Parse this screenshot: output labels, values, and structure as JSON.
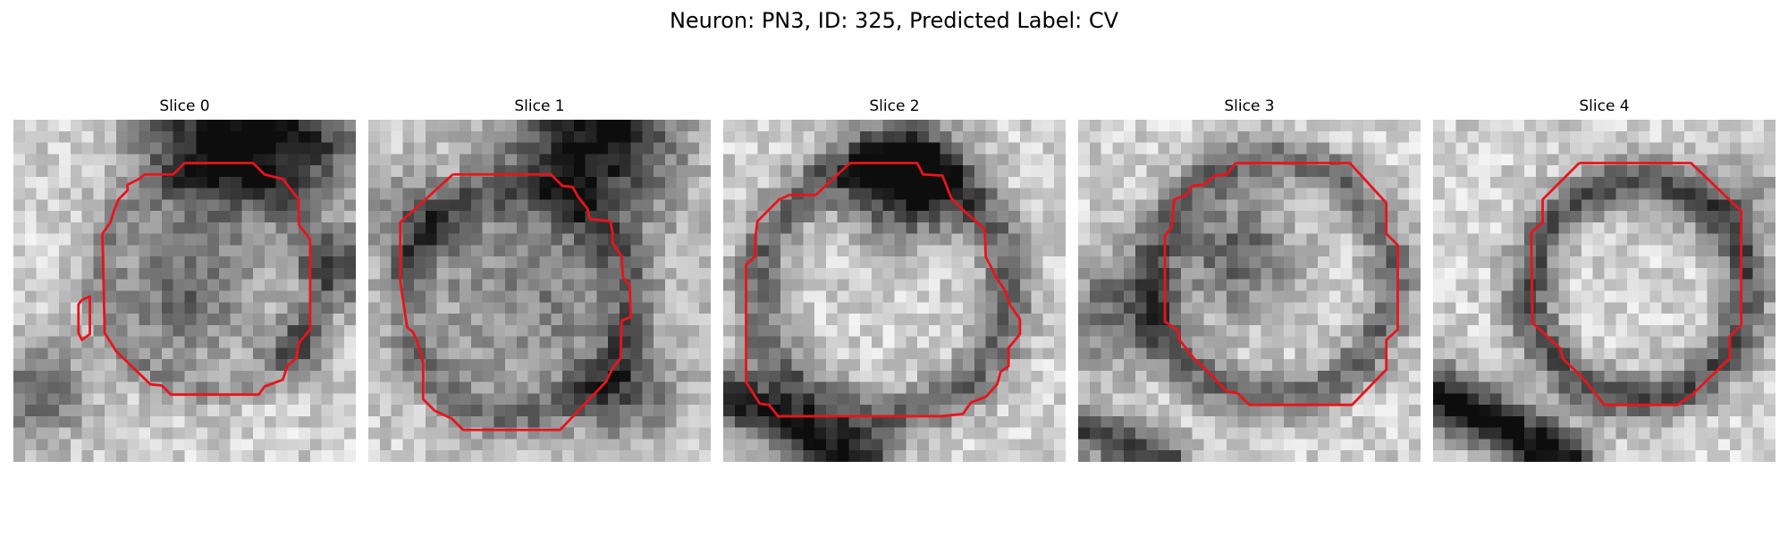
{
  "figure": {
    "title": "Neuron: PN3, ID: 325, Predicted Label: CV"
  },
  "panels": [
    {
      "title": "Slice 0"
    },
    {
      "title": "Slice 1"
    },
    {
      "title": "Slice 2"
    },
    {
      "title": "Slice 3"
    },
    {
      "title": "Slice 4"
    }
  ],
  "colors": {
    "contour": "#e8141c"
  }
}
